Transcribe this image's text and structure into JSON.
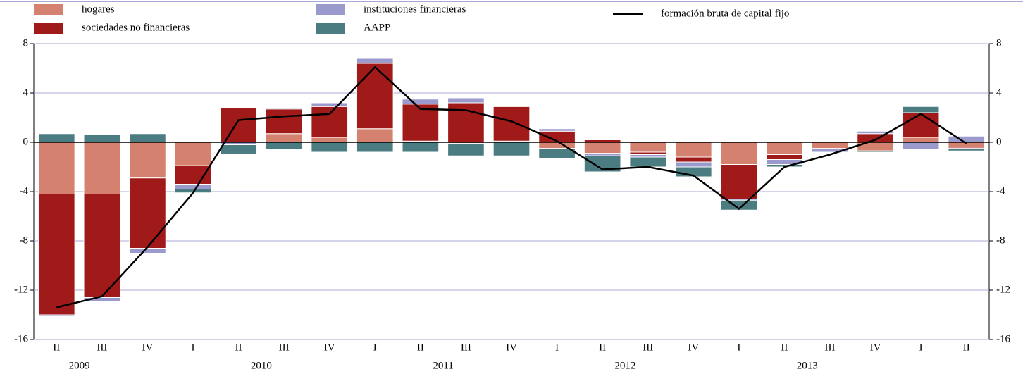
{
  "chart_data": {
    "type": "stacked_bar_line",
    "categories": [
      "II",
      "III",
      "IV",
      "I",
      "II",
      "III",
      "IV",
      "I",
      "II",
      "III",
      "IV",
      "I",
      "II",
      "III",
      "IV",
      "I",
      "II",
      "III",
      "IV",
      "I",
      "II"
    ],
    "years": [
      "2009",
      "2010",
      "2011",
      "2012",
      "2013"
    ],
    "series": [
      {
        "name": "hogares",
        "color": "#d4826f",
        "values": [
          -4.2,
          -4.2,
          -2.9,
          -1.9,
          0,
          0.7,
          0.4,
          1.1,
          0.1,
          -0.1,
          0.1,
          -0.5,
          -0.9,
          -0.8,
          -1.2,
          -1.8,
          -1.0,
          -0.5,
          -0.7,
          0.4,
          -0.4
        ]
      },
      {
        "name": "sociedades no financieras",
        "color": "#a01a1a",
        "values": [
          -9.8,
          -8.4,
          -5.7,
          -1.5,
          2.8,
          2.0,
          2.5,
          5.3,
          3.0,
          3.2,
          2.8,
          0.9,
          0.2,
          -0.2,
          -0.4,
          -2.8,
          -0.4,
          0,
          0.7,
          2.0,
          -0.1
        ]
      },
      {
        "name": "instituciones financieras",
        "color": "#9a9acd",
        "values": [
          -0.1,
          -0.3,
          -0.4,
          -0.4,
          -0.2,
          0.1,
          0.3,
          0.4,
          0.4,
          0.4,
          0.1,
          0.2,
          -0.2,
          -0.2,
          -0.4,
          -0.1,
          -0.4,
          -0.3,
          0.2,
          -0.6,
          0.5
        ]
      },
      {
        "name": "AAPP",
        "color": "#4a7c82",
        "values": [
          0.7,
          0.6,
          0.7,
          -0.3,
          -0.8,
          -0.6,
          -0.8,
          -0.8,
          -0.8,
          -1.0,
          -1.1,
          -0.8,
          -1.3,
          -0.8,
          -0.8,
          -0.8,
          -0.2,
          0,
          -0.1,
          0.5,
          -0.2
        ]
      },
      {
        "name": "formación bruta de capital fijo",
        "type": "line",
        "color": "#000000",
        "values": [
          -13.4,
          -12.5,
          -8.5,
          -4.1,
          1.8,
          2.1,
          2.3,
          6.1,
          2.7,
          2.6,
          1.7,
          0.1,
          -2.2,
          -2.0,
          -2.7,
          -5.4,
          -2.0,
          -1.0,
          0.2,
          2.3,
          -0.1
        ]
      }
    ],
    "ylim": [
      -16,
      8
    ],
    "yticks": [
      8,
      4,
      0,
      -4,
      -8,
      -12,
      -16
    ],
    "y2lim": [
      -16,
      8
    ],
    "y2ticks": [
      8,
      4,
      0,
      -4,
      -8,
      -12,
      -16
    ],
    "grid": true
  }
}
